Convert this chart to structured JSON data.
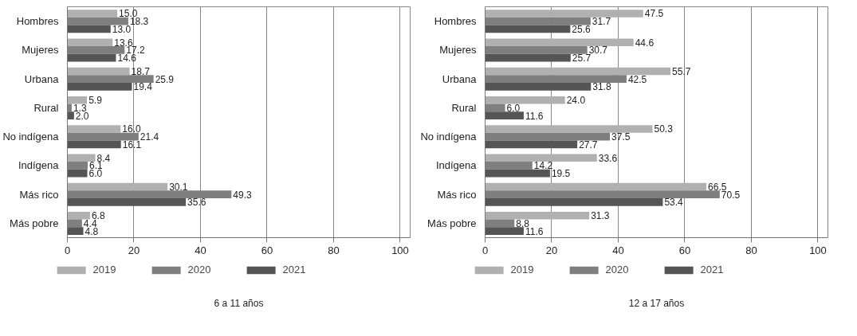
{
  "chart_data": [
    {
      "type": "bar",
      "orientation": "horizontal",
      "categories": [
        "Hombres",
        "Mujeres",
        "Urbana",
        "Rural",
        "No indígena",
        "Indígena",
        "Más rico",
        "Más pobre"
      ],
      "series": [
        {
          "name": "2019",
          "color": "#b0b0b0",
          "values": [
            15.0,
            13.6,
            18.7,
            5.9,
            16.0,
            8.4,
            30.1,
            6.8
          ],
          "value_labels": [
            "15.0",
            "13.6",
            "18.7",
            "5.9",
            "16.0",
            "8.4",
            "30.1",
            "6.8"
          ]
        },
        {
          "name": "2020",
          "color": "#7f7f7f",
          "values": [
            18.3,
            17.2,
            25.9,
            1.3,
            21.4,
            6.1,
            49.3,
            4.4
          ],
          "value_labels": [
            "18.3",
            "17.2",
            "25.9",
            "1.3",
            "21.4",
            "6.1",
            "49.3",
            "4.4"
          ]
        },
        {
          "name": "2021",
          "color": "#555555",
          "values": [
            13.0,
            14.6,
            19.4,
            2.0,
            16.1,
            6.0,
            35.6,
            4.8
          ],
          "value_labels": [
            "13.0",
            "14.6",
            "19.4",
            "2.0",
            "16.1",
            "6.0",
            "35.6",
            "4.8"
          ]
        }
      ],
      "xlim": [
        0,
        103
      ],
      "xticks": [
        0,
        20,
        40,
        60,
        80,
        100
      ],
      "grid": "x",
      "legend": "bottom",
      "annotations": [
        "6 a 11 años"
      ]
    },
    {
      "type": "bar",
      "orientation": "horizontal",
      "categories": [
        "Hombres",
        "Mujeres",
        "Urbana",
        "Rural",
        "No indígena",
        "Indígena",
        "Más rico",
        "Más pobre"
      ],
      "series": [
        {
          "name": "2019",
          "color": "#b0b0b0",
          "values": [
            47.5,
            44.6,
            55.7,
            24.0,
            50.3,
            33.6,
            66.5,
            31.3
          ],
          "value_labels": [
            "47.5",
            "44.6",
            "55.7",
            "24.0",
            "50.3",
            "33.6",
            "66.5",
            "31.3"
          ]
        },
        {
          "name": "2020",
          "color": "#7f7f7f",
          "values": [
            31.7,
            30.7,
            42.5,
            6.0,
            37.5,
            14.2,
            70.5,
            8.8
          ],
          "value_labels": [
            "31.7",
            "30.7",
            "42.5",
            "6.0",
            "37.5",
            "14.2",
            "70.5",
            "8.8"
          ]
        },
        {
          "name": "2021",
          "color": "#555555",
          "values": [
            25.6,
            25.7,
            31.8,
            11.6,
            27.7,
            19.5,
            53.4,
            11.6
          ],
          "value_labels": [
            "25.6",
            "25.7",
            "31.8",
            "11.6",
            "27.7",
            "19.5",
            "53.4",
            "11.6"
          ]
        }
      ],
      "xlim": [
        0,
        103
      ],
      "xticks": [
        0,
        20,
        40,
        60,
        80,
        100
      ],
      "grid": "x",
      "legend": "bottom",
      "annotations": [
        "12 a 17 años"
      ]
    }
  ]
}
